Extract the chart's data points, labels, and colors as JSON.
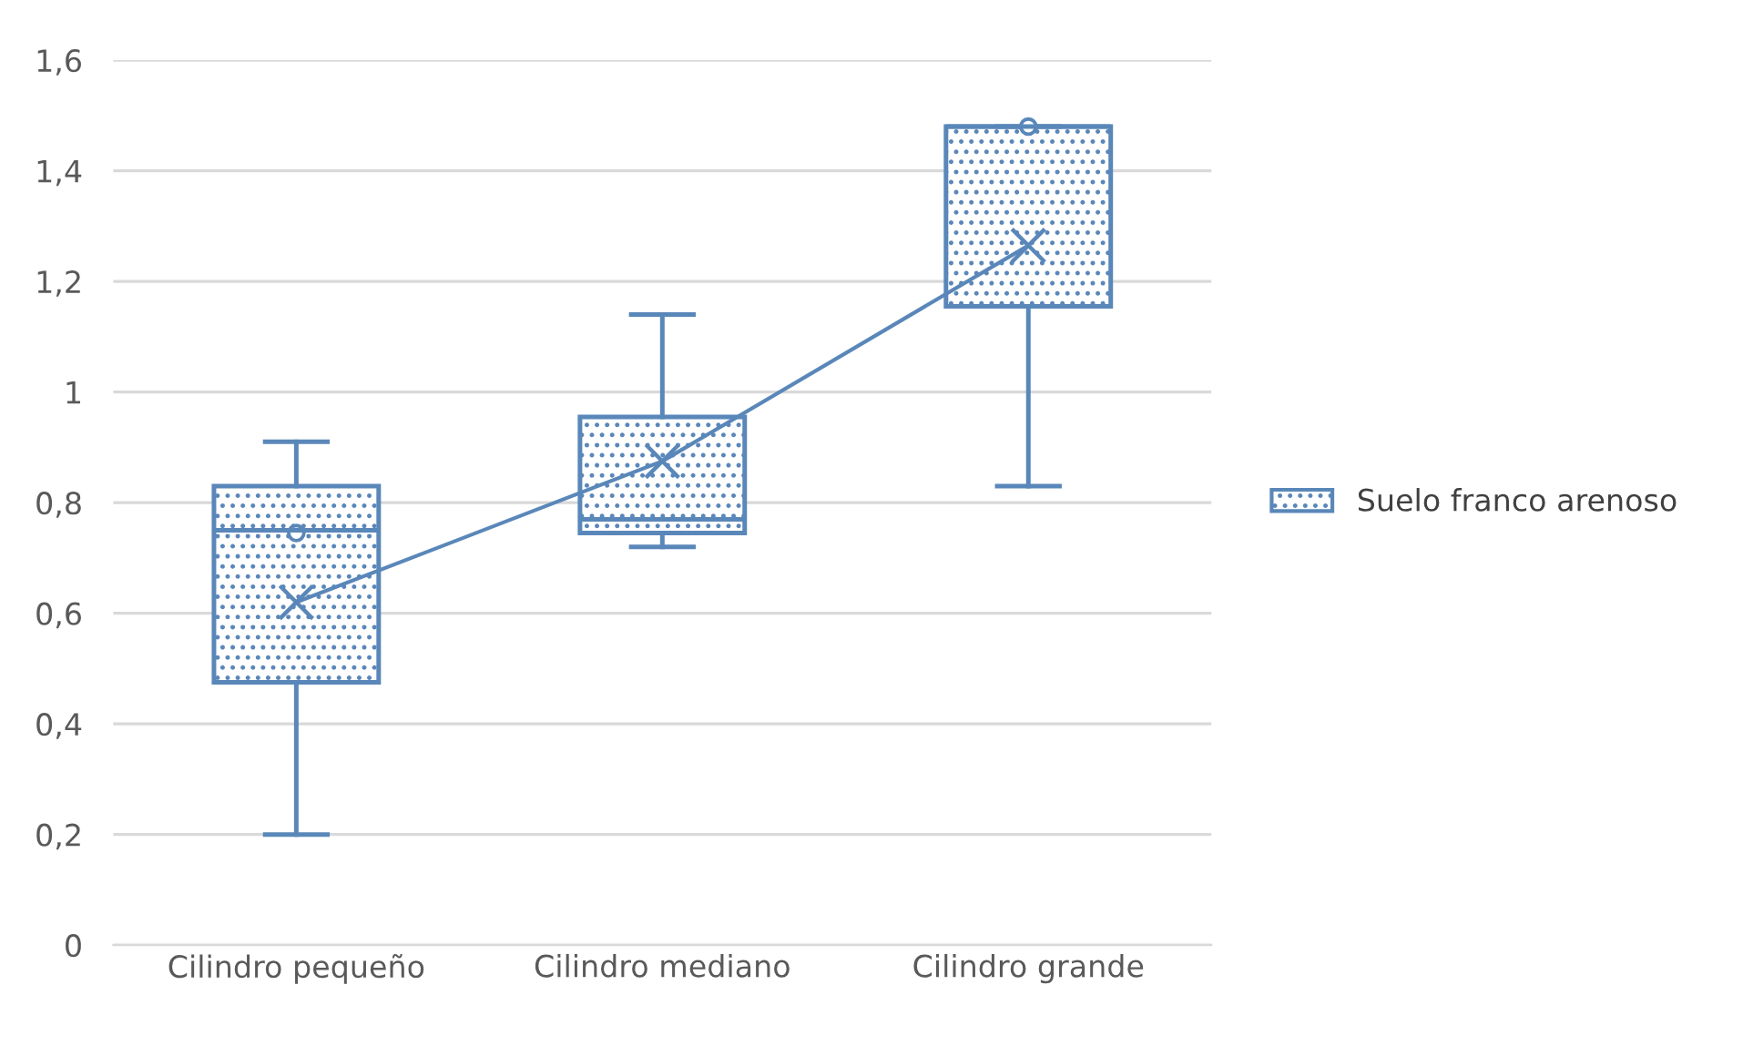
{
  "chart_data": {
    "type": "box",
    "categories": [
      "Cilindro pequeño",
      "Cilindro mediano",
      "Cilindro grande"
    ],
    "series": [
      {
        "name": "Suelo franco arenoso",
        "color": "#5a87b9",
        "boxes": [
          {
            "low": 0.2,
            "q1": 0.475,
            "median": 0.75,
            "q3": 0.83,
            "high": 0.91,
            "mean": 0.62,
            "outliers": [
              0.745
            ]
          },
          {
            "low": 0.72,
            "q1": 0.745,
            "median": 0.77,
            "q3": 0.955,
            "high": 1.14,
            "mean": 0.875
          },
          {
            "low": 0.83,
            "q1": 1.155,
            "median": 1.48,
            "q3": 1.48,
            "high": 1.48,
            "mean": 1.265,
            "outliers": [
              1.48
            ]
          }
        ]
      },
      {
        "type": "line",
        "color": "#5a87b9",
        "values": [
          0.62,
          0.875,
          1.265
        ],
        "marker": "none"
      }
    ],
    "ylim": [
      0,
      1.6
    ],
    "yticks": [
      0,
      {
        "value": 0.2,
        "label": "0,2"
      },
      {
        "value": 0.4,
        "label": "0,4"
      },
      {
        "value": 0.6,
        "label": "0,6"
      },
      {
        "value": 0.8,
        "label": "0,8"
      },
      1,
      {
        "value": 1.2,
        "label": "1,2"
      },
      {
        "value": 1.4,
        "label": "1,4"
      },
      {
        "value": 1.6,
        "label": "1,6"
      }
    ],
    "grid": "y",
    "legend": "right"
  }
}
